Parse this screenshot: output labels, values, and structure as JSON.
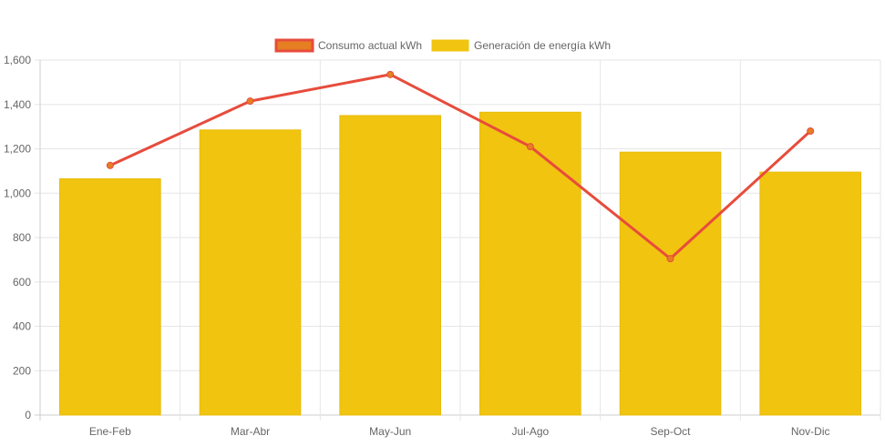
{
  "chart_data": {
    "type": "bar",
    "categories": [
      "Ene-Feb",
      "Mar-Abr",
      "May-Jun",
      "Jul-Ago",
      "Sep-Oct",
      "Nov-Dic"
    ],
    "ylim": [
      0,
      1600
    ],
    "yticks": [
      0,
      200,
      400,
      600,
      800,
      1000,
      1200,
      1400,
      1600
    ],
    "ytick_labels": [
      "0",
      "200",
      "400",
      "600",
      "800",
      "1,000",
      "1,200",
      "1,400",
      "1,600"
    ],
    "grid": true,
    "legend_position": "top-center",
    "series": [
      {
        "name": "Consumo actual kWh",
        "type": "line",
        "color": "#e74c3c",
        "point_fill": "#e67e22",
        "values": [
          1125,
          1415,
          1535,
          1210,
          705,
          1280
        ]
      },
      {
        "name": "Generación de energía kWh",
        "type": "bar",
        "color": "#f1c40f",
        "values": [
          1065,
          1285,
          1350,
          1365,
          1185,
          1095
        ]
      }
    ]
  }
}
